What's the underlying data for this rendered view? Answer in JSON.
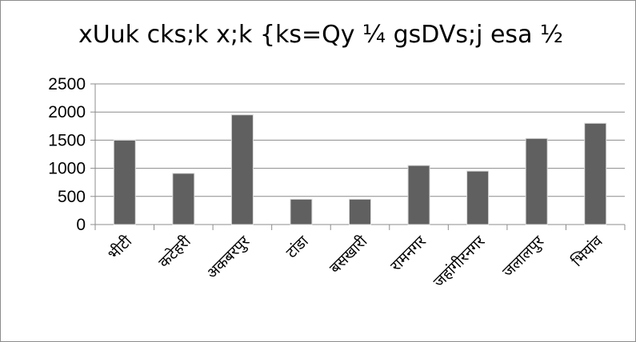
{
  "chart_data": {
    "type": "bar",
    "title": "xUuk cks;k x;k {ks=Qy ¼ gsDVs;j esa ½",
    "xlabel": "",
    "ylabel": "",
    "categories": [
      "भीटी",
      "कटेहरी",
      "अकबरपुर",
      "टांडा",
      "बसखारी",
      "रामनगर",
      "जहांगीरनगर",
      "जलालपुर",
      "भियांव"
    ],
    "values": [
      1500,
      910,
      1950,
      450,
      450,
      1050,
      950,
      1530,
      1800
    ],
    "ylim": [
      0,
      2500
    ],
    "yticks": [
      0,
      500,
      1000,
      1500,
      2000,
      2500
    ],
    "grid": true,
    "legend": "none",
    "bar_color": "#606060",
    "grid_color": "#8c8c8c"
  }
}
